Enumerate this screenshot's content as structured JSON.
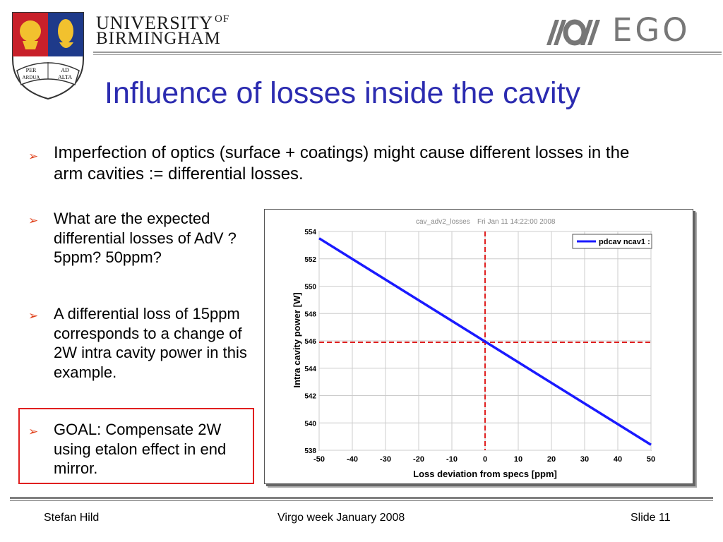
{
  "header": {
    "university_line1": "UNIVERSITY",
    "university_of": "OF",
    "university_line2": "BIRMINGHAM",
    "crest_motto": [
      "PER",
      "AD",
      "ARDUA",
      "ALTA"
    ],
    "ego_text": "EGO",
    "title": "Influence of losses inside the cavity"
  },
  "bullets": {
    "b1": "Imperfection of optics (surface + coatings) might cause different losses in the arm cavities := differential losses.",
    "b2": "What are the expected differential losses of AdV ? 5ppm? 50ppm?",
    "b3": "A differential loss of 15ppm corresponds to a change of 2W intra cavity power in this example.",
    "b4": "GOAL: Compensate 2W using etalon effect in end mirror."
  },
  "chart_data": {
    "type": "line",
    "header_left": "cav_adv2_losses",
    "header_right": "Fri Jan 11 14:22:00 2008",
    "xlabel": "Loss deviation from specs [ppm]",
    "ylabel": "Intra cavity power [W]",
    "xlim": [
      -50,
      50
    ],
    "ylim": [
      538,
      554
    ],
    "x_ticks": [
      "-50",
      "-40",
      "-30",
      "-20",
      "-10",
      "0",
      "10",
      "20",
      "30",
      "40",
      "50"
    ],
    "y_ticks": [
      "538",
      "540",
      "542",
      "544",
      "546",
      "548",
      "550",
      "552",
      "554"
    ],
    "grid": true,
    "legend_position": "top-right",
    "series": [
      {
        "name": "pdcav ncav1 :",
        "color": "#1a1aff",
        "x": [
          -50,
          50
        ],
        "y": [
          553.5,
          538.4
        ]
      }
    ],
    "reference_lines": {
      "x": 0,
      "y": 545.9,
      "color": "#e02020"
    }
  },
  "footer": {
    "left": "Stefan Hild",
    "center": "Virgo week January 2008",
    "right": "Slide 11"
  }
}
